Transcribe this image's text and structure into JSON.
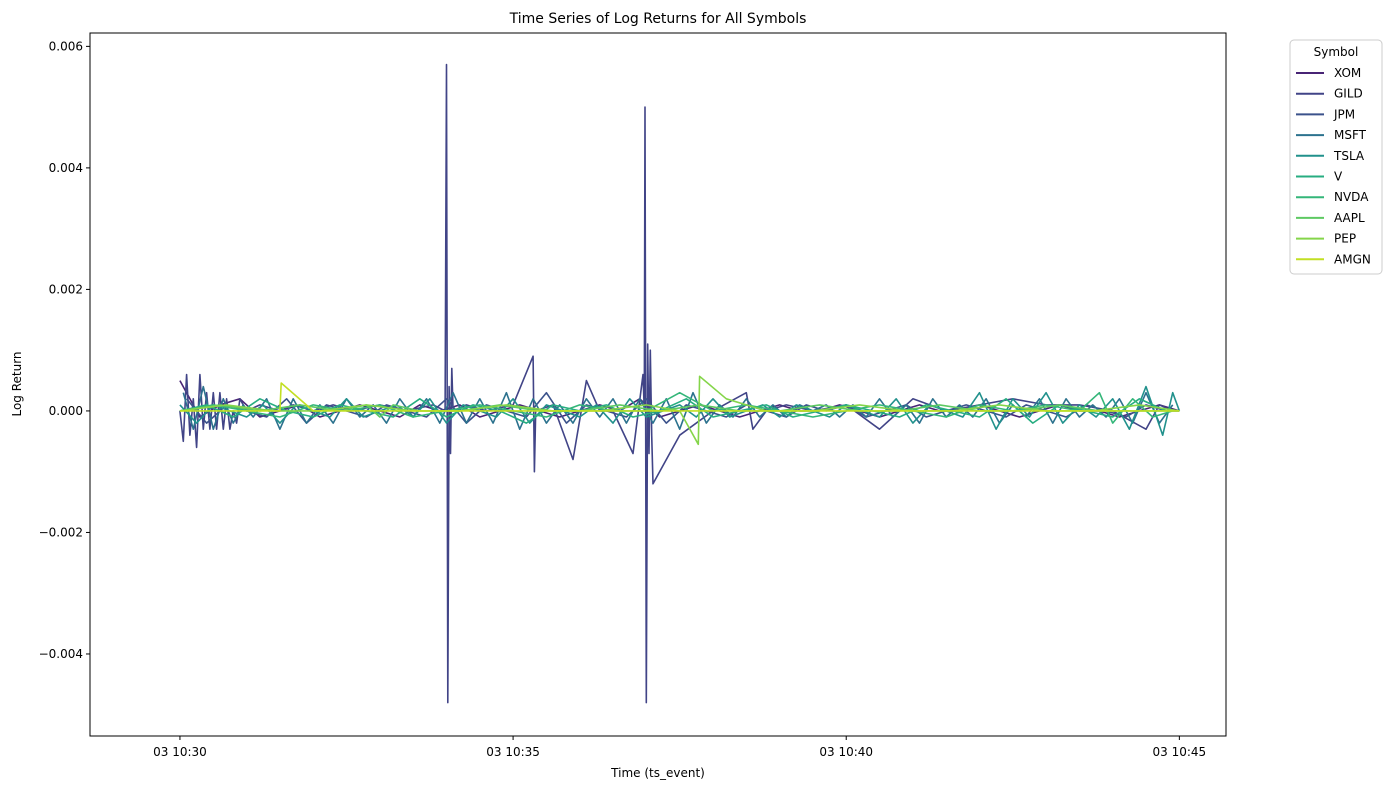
{
  "chart_data": {
    "type": "line",
    "title": "Time Series of Log Returns for All Symbols",
    "xlabel": "Time (ts_event)",
    "ylabel": "Log Return",
    "x_unit": "minutes after 10:30",
    "xlim": [
      -1.35,
      15.7
    ],
    "ylim": [
      -0.00535,
      0.00622
    ],
    "x_ticks": [
      {
        "value": 0,
        "label": "03 10:30"
      },
      {
        "value": 5,
        "label": "03 10:35"
      },
      {
        "value": 10,
        "label": "03 10:40"
      },
      {
        "value": 15,
        "label": "03 10:45"
      }
    ],
    "y_ticks": [
      {
        "value": -0.004,
        "label": "−0.004"
      },
      {
        "value": -0.002,
        "label": "−0.002"
      },
      {
        "value": 0.0,
        "label": "0.000"
      },
      {
        "value": 0.002,
        "label": "0.002"
      },
      {
        "value": 0.004,
        "label": "0.004"
      },
      {
        "value": 0.006,
        "label": "0.006"
      }
    ],
    "grid": false,
    "legend": {
      "title": "Symbol",
      "placement": "outside upper-right"
    },
    "series": [
      {
        "name": "XOM",
        "color": "#482475",
        "x": [
          0,
          0.3,
          0.6,
          0.9,
          1.2,
          1.5,
          1.8,
          2.1,
          2.4,
          2.7,
          3.0,
          3.3,
          3.6,
          3.9,
          4.2,
          4.5,
          4.8,
          5.1,
          5.4,
          5.7,
          6.0,
          6.3,
          6.6,
          6.9,
          7.2,
          7.5,
          7.8,
          8.1,
          8.4,
          8.7,
          9.0,
          9.3,
          9.6,
          9.9,
          10.2,
          10.5,
          10.8,
          11.1,
          11.4,
          11.7,
          12.0,
          12.3,
          12.6,
          12.9,
          13.2,
          13.5,
          13.8,
          14.1,
          14.4,
          14.7,
          15.0
        ],
        "y": [
          0.0005,
          -0.0001,
          0.0001,
          0.0002,
          -0.0001,
          0.0,
          0.0001,
          -0.0001,
          0.0,
          0.0001,
          0.0,
          -0.0001,
          0.0001,
          0.0,
          0.0001,
          -0.0001,
          0.0,
          0.0001,
          0.0,
          -0.0001,
          0.0,
          0.0001,
          0.0,
          0.0002,
          -0.0001,
          0.0,
          0.0001,
          0.0,
          -0.0001,
          0.0,
          0.0001,
          0.0,
          0.0,
          0.0001,
          0.0,
          -0.0001,
          0.0,
          0.0001,
          0.0,
          0.0,
          0.0001,
          0.0,
          -0.0001,
          0.0,
          0.0001,
          0.0,
          0.0,
          -0.0001,
          0.0,
          0.0001,
          0.0
        ]
      },
      {
        "name": "GILD",
        "color": "#414487",
        "x": [
          0.0,
          0.05,
          0.1,
          0.15,
          0.2,
          0.25,
          0.3,
          0.35,
          0.4,
          0.45,
          0.5,
          0.55,
          0.6,
          0.65,
          0.7,
          0.75,
          0.8,
          0.85,
          0.9,
          1.0,
          1.2,
          1.5,
          1.7,
          2.0,
          2.3,
          2.6,
          3.0,
          3.4,
          3.8,
          3.98,
          4.0,
          4.02,
          4.04,
          4.06,
          4.08,
          4.1,
          4.3,
          4.6,
          5.0,
          5.3,
          5.32,
          5.34,
          5.6,
          5.9,
          6.1,
          6.3,
          6.5,
          6.8,
          6.95,
          6.97,
          6.98,
          7.0,
          7.02,
          7.04,
          7.06,
          7.08,
          7.1,
          7.5,
          8.0,
          8.5,
          8.6,
          8.8,
          9.1,
          9.5,
          10.0,
          10.5,
          11.0,
          11.5,
          12.0,
          12.5,
          13.0,
          13.5,
          14.0,
          14.5,
          14.7,
          14.9,
          15.0
        ],
        "y": [
          0.0,
          -0.0005,
          0.0006,
          -0.0004,
          0.0002,
          -0.0006,
          0.0006,
          -0.0003,
          0.0003,
          -0.0003,
          0.0003,
          -0.0003,
          0.0003,
          -0.0003,
          0.0002,
          -0.0003,
          0.0,
          -0.0002,
          0.0002,
          0.0,
          0.0001,
          0.0,
          0.0001,
          0.0,
          0.0001,
          0.0,
          0.0001,
          0.0,
          0.0001,
          0.0,
          0.0057,
          -0.0048,
          0.0004,
          -0.0007,
          0.0007,
          0.0,
          0.0001,
          0.0,
          0.0001,
          0.0009,
          -0.001,
          0.0,
          0.0001,
          -0.0008,
          0.0005,
          0.0,
          0.0,
          -0.0007,
          0.0006,
          0.0,
          0.005,
          -0.0048,
          0.0011,
          -0.0007,
          0.001,
          -0.0004,
          -0.0012,
          -0.0004,
          0.0,
          0.0003,
          -0.0003,
          0.0,
          0.0001,
          0.0,
          0.0001,
          -0.0003,
          0.0002,
          0.0,
          0.0001,
          0.0002,
          0.0001,
          0.0001,
          0.0,
          -0.0003,
          0.0001,
          0.0,
          0.0
        ]
      },
      {
        "name": "JPM",
        "color": "#3b528b",
        "x": [
          0.1,
          0.4,
          0.7,
          1.0,
          1.3,
          1.6,
          1.9,
          2.2,
          2.5,
          2.8,
          3.1,
          3.4,
          3.7,
          4.0,
          4.3,
          4.6,
          4.9,
          5.2,
          5.5,
          5.8,
          6.1,
          6.4,
          6.7,
          7.0,
          7.3,
          7.6,
          7.9,
          8.2,
          8.5,
          8.8,
          9.1,
          9.4,
          9.7,
          10.0,
          10.3,
          10.6,
          10.9,
          11.2,
          11.5,
          11.8,
          12.1,
          12.4,
          12.7,
          13.0,
          13.3,
          13.6,
          13.9,
          14.2,
          14.5,
          14.8
        ],
        "y": [
          0.0002,
          -0.0002,
          0.0001,
          0.0,
          -0.0001,
          0.0002,
          -0.0002,
          0.0001,
          0.0,
          -0.0001,
          0.0001,
          0.0,
          -0.0001,
          0.0002,
          -0.0002,
          0.0001,
          0.0,
          -0.0001,
          0.0003,
          -0.0002,
          0.0001,
          0.0,
          -0.0001,
          0.0002,
          -0.0002,
          0.0001,
          0.0,
          -0.0001,
          0.0001,
          0.0,
          -0.0001,
          0.0001,
          0.0,
          0.0001,
          -0.0001,
          0.0,
          0.0001,
          -0.0001,
          0.0,
          0.0001,
          0.0,
          -0.0001,
          0.0001,
          0.0,
          -0.0001,
          0.0001,
          0.0,
          -0.0001,
          0.0001,
          0.0
        ]
      },
      {
        "name": "MSFT",
        "color": "#2c728e",
        "x": [
          0.05,
          0.2,
          0.35,
          0.5,
          0.65,
          0.8,
          0.95,
          1.1,
          1.3,
          1.5,
          1.7,
          1.9,
          2.1,
          2.3,
          2.5,
          2.7,
          2.9,
          3.1,
          3.3,
          3.5,
          3.7,
          3.9,
          4.1,
          4.3,
          4.5,
          4.7,
          4.9,
          5.1,
          5.3,
          5.5,
          5.7,
          5.9,
          6.1,
          6.3,
          6.5,
          6.7,
          6.9,
          7.1,
          7.3,
          7.5,
          7.7,
          7.9,
          8.1,
          8.3,
          8.5,
          8.7,
          8.9,
          9.1,
          9.3,
          9.5,
          9.7,
          9.9,
          10.1,
          10.3,
          10.5,
          10.7,
          10.9,
          11.1,
          11.3,
          11.5,
          11.7,
          11.9,
          12.1,
          12.3,
          12.5,
          12.7,
          12.9,
          13.1,
          13.3,
          13.5,
          13.7,
          13.9,
          14.1,
          14.3,
          14.5,
          14.7,
          14.9
        ],
        "y": [
          0.0003,
          -0.0003,
          0.0004,
          -0.0003,
          0.0002,
          -0.0002,
          0.0001,
          -0.0001,
          0.0002,
          -0.0003,
          0.0002,
          -0.0002,
          0.0001,
          -0.0002,
          0.0002,
          -0.0001,
          0.0001,
          -0.0002,
          0.0002,
          -0.0001,
          0.0002,
          -0.0002,
          0.0003,
          -0.0002,
          0.0002,
          -0.0002,
          0.0003,
          -0.0003,
          0.0002,
          -0.0002,
          0.0001,
          -0.0002,
          0.0002,
          -0.0001,
          0.0002,
          -0.0002,
          0.0002,
          -0.0002,
          0.0002,
          -0.0003,
          0.0003,
          -0.0002,
          0.0001,
          -0.0001,
          0.0002,
          -0.0001,
          0.0001,
          -0.0001,
          0.0001,
          0.0,
          0.0001,
          -0.0001,
          0.0001,
          -0.0001,
          0.0002,
          -0.0001,
          0.0001,
          -0.0002,
          0.0002,
          -0.0001,
          0.0001,
          -0.0001,
          0.0002,
          -0.0002,
          0.0001,
          -0.0001,
          0.0002,
          -0.0002,
          0.0002,
          -0.0001,
          0.0001,
          -0.0001,
          0.0002,
          -0.0002,
          0.0003,
          -0.0002,
          0.0001
        ]
      },
      {
        "name": "TSLA",
        "color": "#21918c",
        "x": [
          0.0,
          0.25,
          0.5,
          0.75,
          1.0,
          1.25,
          1.5,
          1.75,
          2.0,
          2.25,
          2.5,
          2.75,
          3.0,
          3.25,
          3.5,
          3.75,
          4.0,
          4.25,
          4.5,
          4.75,
          5.0,
          5.25,
          5.5,
          5.75,
          6.0,
          6.25,
          6.5,
          6.75,
          7.0,
          7.25,
          7.5,
          7.75,
          8.0,
          8.25,
          8.5,
          8.75,
          9.0,
          9.25,
          9.5,
          9.75,
          10.0,
          10.25,
          10.5,
          10.75,
          11.0,
          11.25,
          11.5,
          11.75,
          12.0,
          12.25,
          12.5,
          12.75,
          13.0,
          13.25,
          13.5,
          13.75,
          14.0,
          14.25,
          14.5,
          14.75,
          14.9,
          15.0
        ],
        "y": [
          0.0001,
          -0.0002,
          0.0001,
          0.0,
          -0.0001,
          0.0001,
          -0.0002,
          0.0001,
          0.0,
          -0.0001,
          0.0002,
          -0.0001,
          0.0,
          0.0001,
          -0.0001,
          0.0002,
          -0.0002,
          0.0001,
          0.0,
          -0.0001,
          0.0002,
          -0.0002,
          0.0001,
          0.0,
          -0.0001,
          0.0001,
          -0.0002,
          0.0002,
          -0.0001,
          0.0,
          0.0001,
          -0.0001,
          0.0002,
          -0.0001,
          0.0,
          0.0001,
          -0.0001,
          0.0001,
          0.0,
          -0.0001,
          0.0001,
          0.0,
          -0.0001,
          0.0002,
          -0.0002,
          0.0001,
          0.0,
          -0.0001,
          0.0003,
          -0.0003,
          0.0002,
          -0.0001,
          0.0003,
          -0.0002,
          0.0001,
          -0.0001,
          0.0002,
          -0.0003,
          0.0004,
          -0.0004,
          0.0003,
          0.0
        ]
      },
      {
        "name": "V",
        "color": "#27ad81",
        "x": [
          0.0,
          0.4,
          0.8,
          1.2,
          1.6,
          2.0,
          2.4,
          2.8,
          3.2,
          3.6,
          4.0,
          4.4,
          4.8,
          5.2,
          5.6,
          6.0,
          6.4,
          6.8,
          7.2,
          7.6,
          8.0,
          8.4,
          8.8,
          9.2,
          9.6,
          10.0,
          10.4,
          10.8,
          11.2,
          11.6,
          12.0,
          12.4,
          12.8,
          13.2,
          13.6,
          14.0,
          14.4,
          14.8
        ],
        "y": [
          0.0,
          0.0001,
          -0.0001,
          0.0002,
          0.0,
          -0.0001,
          0.0001,
          0.0,
          -0.0001,
          0.0002,
          -0.0001,
          0.0001,
          0.0,
          -0.0002,
          0.0001,
          0.0,
          0.0001,
          -0.0001,
          0.0,
          0.0002,
          -0.0001,
          0.0,
          0.0001,
          -0.0001,
          0.0,
          0.0001,
          0.0,
          -0.0001,
          0.0001,
          0.0,
          -0.0001,
          0.0002,
          -0.0002,
          0.0001,
          0.0,
          -0.0001,
          0.0002,
          0.0
        ]
      },
      {
        "name": "NVDA",
        "color": "#34b679",
        "x": [
          0.0,
          0.5,
          1.0,
          1.5,
          2.0,
          2.5,
          3.0,
          3.5,
          4.0,
          4.5,
          5.0,
          5.5,
          6.0,
          6.5,
          7.0,
          7.5,
          8.0,
          8.5,
          9.0,
          9.5,
          10.0,
          10.5,
          11.0,
          11.5,
          12.0,
          12.5,
          13.0,
          13.5,
          13.8,
          14.0,
          14.3,
          14.6,
          14.9
        ],
        "y": [
          0.0,
          0.0001,
          0.0,
          -0.0001,
          0.0001,
          0.0,
          0.0001,
          -0.0001,
          0.0,
          0.0001,
          0.0,
          -0.0001,
          0.0001,
          0.0,
          0.0,
          0.0003,
          0.0,
          0.0001,
          0.0,
          -0.0001,
          0.0,
          0.0001,
          0.0,
          -0.0001,
          0.0001,
          0.0,
          0.0001,
          0.0,
          0.0003,
          -0.0002,
          0.0002,
          -0.0001,
          0.0
        ]
      },
      {
        "name": "AAPL",
        "color": "#5ec962",
        "x": [
          0.0,
          0.6,
          1.2,
          1.8,
          2.4,
          2.8,
          3.0,
          3.2,
          3.6,
          4.2,
          4.8,
          5.4,
          6.0,
          6.6,
          7.2,
          7.8,
          8.4,
          9.0,
          9.6,
          10.2,
          10.8,
          11.4,
          12.0,
          12.6,
          13.2,
          13.8,
          14.4,
          15.0
        ],
        "y": [
          0.0,
          0.0001,
          0.0,
          0.0001,
          0.0,
          0.0001,
          -0.0001,
          0.0001,
          0.0,
          0.0,
          0.0001,
          0.0,
          0.0,
          0.0001,
          0.0,
          0.0001,
          0.0,
          0.0,
          0.0001,
          0.0,
          0.0,
          0.0001,
          0.0,
          0.0,
          0.0001,
          0.0,
          0.0,
          0.0
        ]
      },
      {
        "name": "PEP",
        "color": "#85d54a",
        "x": [
          0.0,
          0.7,
          1.4,
          2.1,
          2.8,
          3.5,
          4.2,
          4.9,
          5.6,
          6.3,
          7.0,
          7.5,
          7.78,
          7.8,
          8.2,
          8.8,
          9.5,
          10.2,
          10.9,
          11.6,
          12.3,
          13.0,
          13.7,
          14.4,
          15.0
        ],
        "y": [
          0.0,
          0.0001,
          0.0,
          0.0,
          0.0001,
          0.0,
          0.0,
          0.0001,
          0.0,
          0.0,
          0.0001,
          0.0,
          -0.00055,
          0.00057,
          0.0002,
          0.0,
          0.0,
          0.0001,
          0.0,
          0.0,
          0.0001,
          0.0,
          0.0,
          0.0001,
          0.0
        ]
      },
      {
        "name": "AMGN",
        "color": "#c2df23",
        "x": [
          0.0,
          1.0,
          1.5,
          1.52,
          2.0,
          3.0,
          4.0,
          5.0,
          6.0,
          7.0,
          8.0,
          9.0,
          10.0,
          11.0,
          12.0,
          13.0,
          14.0,
          15.0
        ],
        "y": [
          0.0,
          0.0,
          0.0,
          0.00046,
          0.0,
          0.0,
          0.0,
          0.0,
          0.0,
          0.0,
          0.0,
          0.0,
          0.0,
          0.0,
          0.0,
          0.0,
          0.0,
          0.0
        ]
      }
    ]
  }
}
